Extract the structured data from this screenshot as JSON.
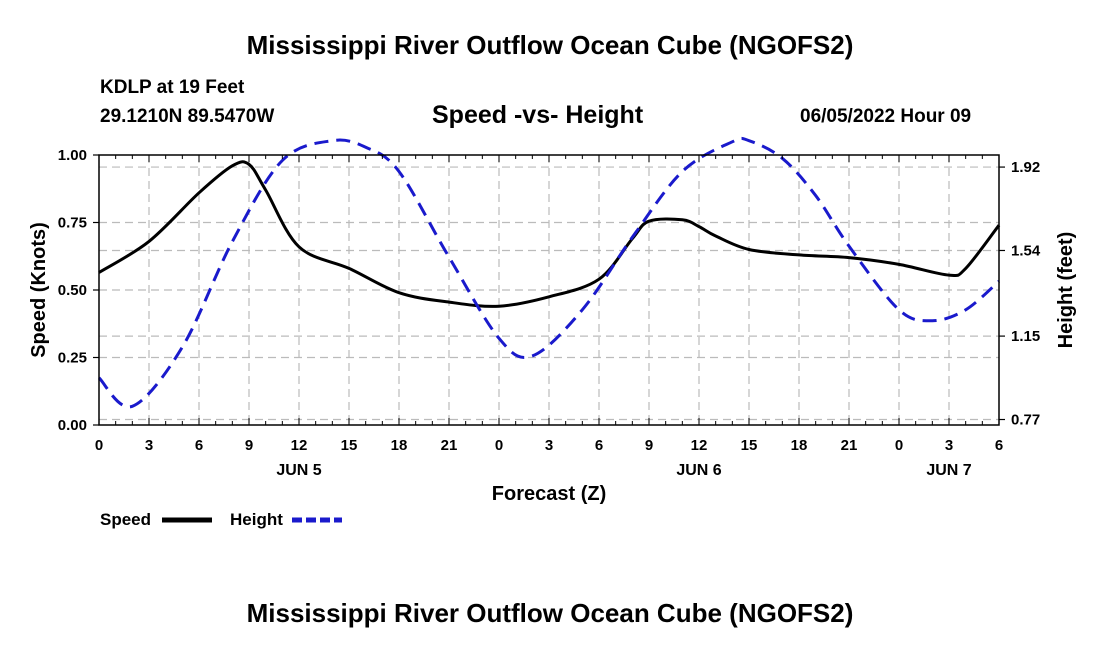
{
  "header": {
    "title": "Mississippi River Outflow Ocean Cube (NGOFS2)",
    "station": "KDLP at 19 Feet",
    "coords": "29.1210N  89.5470W",
    "subtitle": "Speed -vs- Height",
    "date": "06/05/2022 Hour 09"
  },
  "footer": {
    "title": "Mississippi River Outflow Ocean Cube (NGOFS2)"
  },
  "colors": {
    "speed": "#000000",
    "height": "#1a1acc",
    "grid": "#bbbbbb"
  },
  "chart_data": {
    "type": "line",
    "xlabel": "Forecast (Z)",
    "ylabel": "Speed (Knots)",
    "y2label": "Height (feet)",
    "xlim": [
      0,
      54
    ],
    "ylim": [
      0,
      1
    ],
    "y2lim": [
      0.745,
      1.975
    ],
    "x_ticks": [
      0,
      3,
      6,
      9,
      12,
      15,
      18,
      21,
      24,
      27,
      30,
      33,
      36,
      39,
      42,
      45,
      48,
      51,
      54
    ],
    "x_tick_labels": [
      "0",
      "3",
      "6",
      "9",
      "12",
      "15",
      "18",
      "21",
      "0",
      "3",
      "6",
      "9",
      "12",
      "15",
      "18",
      "21",
      "0",
      "3",
      "6"
    ],
    "date_labels": [
      {
        "x": 12,
        "label": "JUN 5"
      },
      {
        "x": 36,
        "label": "JUN 6"
      },
      {
        "x": 51,
        "label": "JUN 7"
      }
    ],
    "y_ticks": [
      0,
      0.25,
      0.5,
      0.75,
      1.0
    ],
    "y_tick_labels": [
      "0.00",
      "0.25",
      "0.50",
      "0.75",
      "1.00"
    ],
    "y2_ticks": [
      0.77,
      1.15,
      1.54,
      1.92
    ],
    "y2_tick_labels": [
      "0.77",
      "1.15",
      "1.54",
      "1.92"
    ],
    "legend": [
      {
        "name": "Speed",
        "style": "solid"
      },
      {
        "name": "Height",
        "style": "dashed"
      }
    ],
    "series": [
      {
        "name": "Speed",
        "axis": "left",
        "style": "solid",
        "x": [
          0,
          3,
          6,
          8,
          9,
          10,
          12,
          15,
          18,
          21,
          24,
          27,
          30,
          32,
          33,
          35,
          36,
          37,
          39,
          42,
          45,
          48,
          51,
          52,
          54
        ],
        "values": [
          0.565,
          0.68,
          0.86,
          0.96,
          0.965,
          0.87,
          0.66,
          0.58,
          0.49,
          0.455,
          0.44,
          0.475,
          0.54,
          0.69,
          0.755,
          0.76,
          0.735,
          0.7,
          0.65,
          0.63,
          0.62,
          0.595,
          0.555,
          0.58,
          0.74
        ]
      },
      {
        "name": "Height",
        "axis": "right",
        "style": "dashed",
        "x": [
          0,
          2,
          5,
          8,
          11,
          14,
          16,
          18,
          21,
          24,
          26,
          29,
          32,
          35,
          38,
          39,
          41,
          43,
          45,
          48,
          50,
          52,
          54
        ],
        "values": [
          0.96,
          0.83,
          1.1,
          1.58,
          1.95,
          2.04,
          2.01,
          1.9,
          1.51,
          1.14,
          1.06,
          1.27,
          1.6,
          1.9,
          2.035,
          2.04,
          1.96,
          1.79,
          1.56,
          1.27,
          1.22,
          1.27,
          1.4
        ]
      }
    ]
  }
}
